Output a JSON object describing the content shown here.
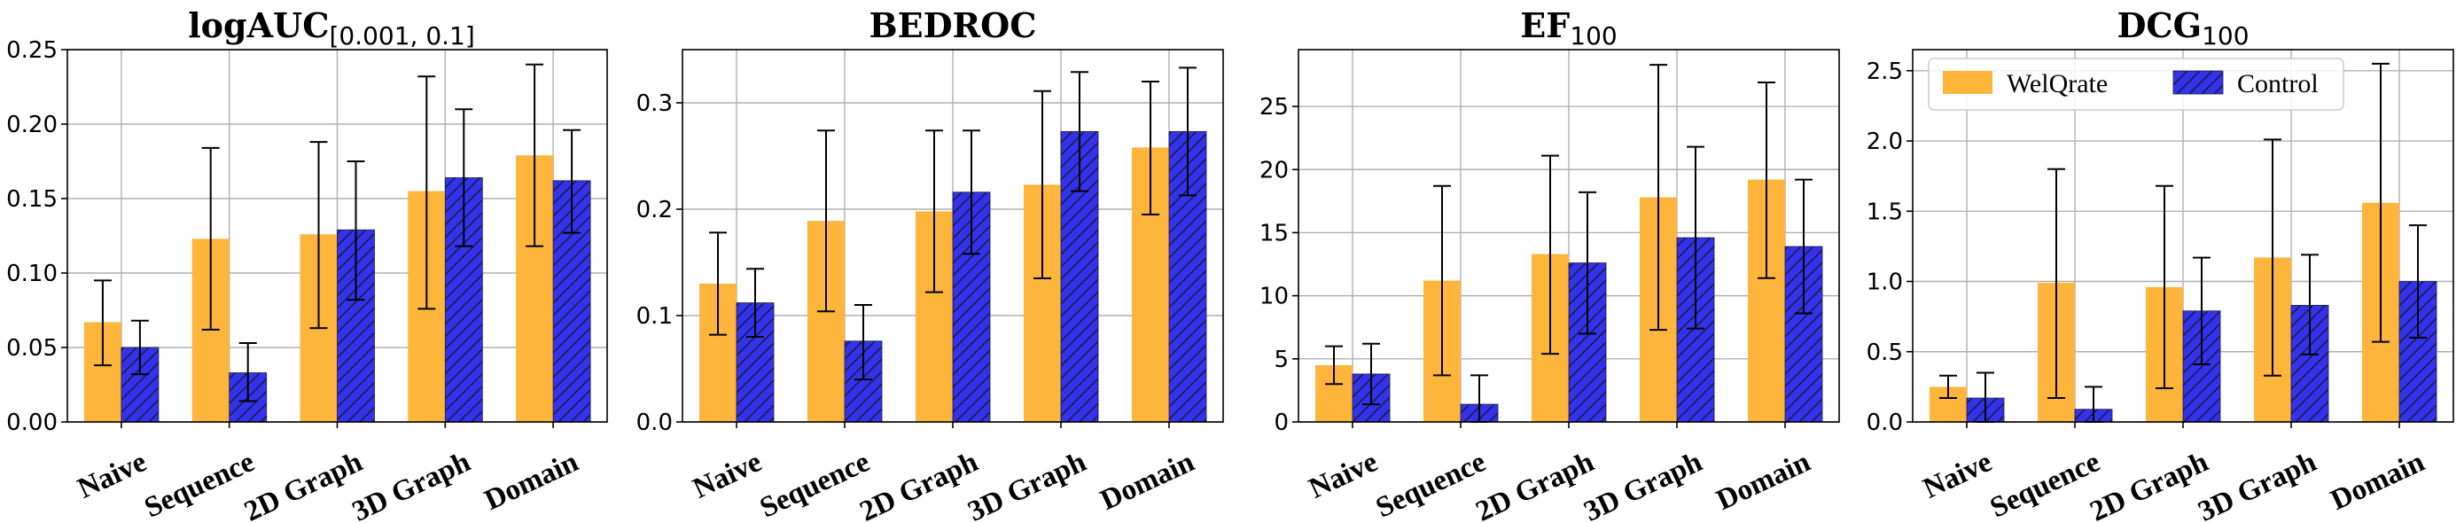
{
  "colors": {
    "welqrate": "#FDB53B",
    "control": "#3333EE",
    "hatch": "#1a1a44"
  },
  "legend": {
    "entries": [
      {
        "label": "WelQrate",
        "style": "solid"
      },
      {
        "label": "Control",
        "style": "hatched"
      }
    ],
    "placement": "upper-left of last panel"
  },
  "chart_data": [
    {
      "type": "bar",
      "title": "logAUC",
      "title_subscript": "[0.001, 0.1]",
      "categories": [
        "Naive",
        "Sequence",
        "2D Graph",
        "3D Graph",
        "Domain"
      ],
      "ylim": [
        0,
        0.25
      ],
      "yticks": [
        0.0,
        0.05,
        0.1,
        0.15,
        0.2,
        0.25
      ],
      "ytick_labels": [
        "0.00",
        "0.05",
        "0.10",
        "0.15",
        "0.20",
        "0.25"
      ],
      "grid": true,
      "series": [
        {
          "name": "WelQrate",
          "values": [
            0.067,
            0.123,
            0.126,
            0.155,
            0.179
          ],
          "err_low": [
            0.038,
            0.062,
            0.063,
            0.076,
            0.118
          ],
          "err_high": [
            0.095,
            0.184,
            0.188,
            0.232,
            0.24
          ]
        },
        {
          "name": "Control",
          "values": [
            0.05,
            0.033,
            0.129,
            0.164,
            0.162
          ],
          "err_low": [
            0.032,
            0.014,
            0.082,
            0.118,
            0.127
          ],
          "err_high": [
            0.068,
            0.053,
            0.175,
            0.21,
            0.196
          ]
        }
      ]
    },
    {
      "type": "bar",
      "title": "BEDROC",
      "title_subscript": "",
      "categories": [
        "Naive",
        "Sequence",
        "2D Graph",
        "3D Graph",
        "Domain"
      ],
      "ylim": [
        0,
        0.35
      ],
      "yticks": [
        0.0,
        0.1,
        0.2,
        0.3
      ],
      "ytick_labels": [
        "0.0",
        "0.1",
        "0.2",
        "0.3"
      ],
      "grid": true,
      "series": [
        {
          "name": "WelQrate",
          "values": [
            0.13,
            0.189,
            0.198,
            0.223,
            0.258
          ],
          "err_low": [
            0.082,
            0.104,
            0.122,
            0.135,
            0.195
          ],
          "err_high": [
            0.178,
            0.274,
            0.274,
            0.311,
            0.32
          ]
        },
        {
          "name": "Control",
          "values": [
            0.112,
            0.076,
            0.216,
            0.273,
            0.273
          ],
          "err_low": [
            0.08,
            0.04,
            0.158,
            0.217,
            0.213
          ],
          "err_high": [
            0.144,
            0.11,
            0.274,
            0.329,
            0.333
          ]
        }
      ]
    },
    {
      "type": "bar",
      "title": "EF",
      "title_subscript": "100",
      "categories": [
        "Naive",
        "Sequence",
        "2D Graph",
        "3D Graph",
        "Domain"
      ],
      "ylim": [
        0,
        29.5
      ],
      "yticks": [
        0,
        5,
        10,
        15,
        20,
        25
      ],
      "ytick_labels": [
        "0",
        "5",
        "10",
        "15",
        "20",
        "25"
      ],
      "grid": true,
      "series": [
        {
          "name": "WelQrate",
          "values": [
            4.5,
            11.2,
            13.3,
            17.8,
            19.2
          ],
          "err_low": [
            3.0,
            3.7,
            5.4,
            7.3,
            11.4
          ],
          "err_high": [
            6.0,
            18.7,
            21.1,
            28.3,
            26.9
          ]
        },
        {
          "name": "Control",
          "values": [
            3.8,
            1.4,
            12.6,
            14.6,
            13.9
          ],
          "err_low": [
            1.4,
            0.0,
            7.0,
            7.4,
            8.6
          ],
          "err_high": [
            6.2,
            3.7,
            18.2,
            21.8,
            19.2
          ]
        }
      ]
    },
    {
      "type": "bar",
      "title": "DCG",
      "title_subscript": "100",
      "categories": [
        "Naive",
        "Sequence",
        "2D Graph",
        "3D Graph",
        "Domain"
      ],
      "ylim": [
        0,
        2.65
      ],
      "yticks": [
        0.0,
        0.5,
        1.0,
        1.5,
        2.0,
        2.5
      ],
      "ytick_labels": [
        "0.0",
        "0.5",
        "1.0",
        "1.5",
        "2.0",
        "2.5"
      ],
      "grid": true,
      "series": [
        {
          "name": "WelQrate",
          "values": [
            0.25,
            0.99,
            0.96,
            1.17,
            1.56
          ],
          "err_low": [
            0.17,
            0.17,
            0.24,
            0.33,
            0.57
          ],
          "err_high": [
            0.33,
            1.8,
            1.68,
            2.01,
            2.55
          ]
        },
        {
          "name": "Control",
          "values": [
            0.17,
            0.09,
            0.79,
            0.83,
            1.0
          ],
          "err_low": [
            0.0,
            0.0,
            0.41,
            0.48,
            0.6
          ],
          "err_high": [
            0.35,
            0.25,
            1.17,
            1.19,
            1.4
          ]
        }
      ]
    }
  ]
}
